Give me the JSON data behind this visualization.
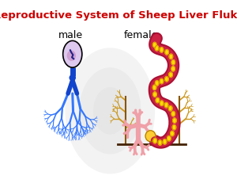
{
  "title": "Reproductive System of Sheep Liver Fluke",
  "title_color": "#cc0000",
  "title_fontsize": 9.5,
  "label_male": "male",
  "label_female": "female",
  "label_fontsize": 9,
  "bg_color": "#ffffff",
  "male_color": "#3377ff",
  "male_dark": "#1144cc",
  "male_mid": "#2255dd",
  "ovary_color": "#f0a0a8",
  "uterus_outer": "#aa1133",
  "uterus_inner": "#cc2244",
  "uterus_dot": "#ffdd00",
  "vit_color": "#cc9922",
  "vit_stem": "#885500",
  "mehlis_color": "#ffcc33",
  "testis_bg": "#ddc8ee",
  "testis_inner": "#cc99cc",
  "testis_dark": "#222288",
  "watermark": "#dddddd"
}
